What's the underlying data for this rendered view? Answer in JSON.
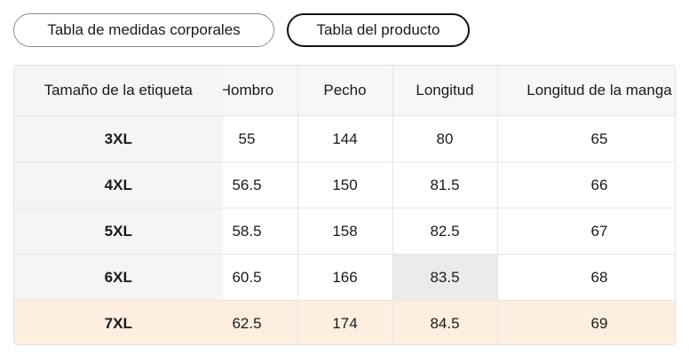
{
  "tabs": [
    "Tabla de medidas corporales",
    "Tabla del producto"
  ],
  "table": {
    "headers": [
      "Tamaño de la etiqueta",
      "Hombro",
      "Pecho",
      "Longitud",
      "Longitud de la manga"
    ],
    "rows": [
      [
        "3XL",
        55,
        144,
        80,
        65
      ],
      [
        "4XL",
        56.5,
        150,
        81.5,
        66
      ],
      [
        "5XL",
        58.5,
        158,
        82.5,
        67
      ],
      [
        "6XL",
        60.5,
        166,
        83.5,
        68
      ],
      [
        "7XL",
        62.5,
        174,
        84.5,
        69
      ]
    ]
  }
}
